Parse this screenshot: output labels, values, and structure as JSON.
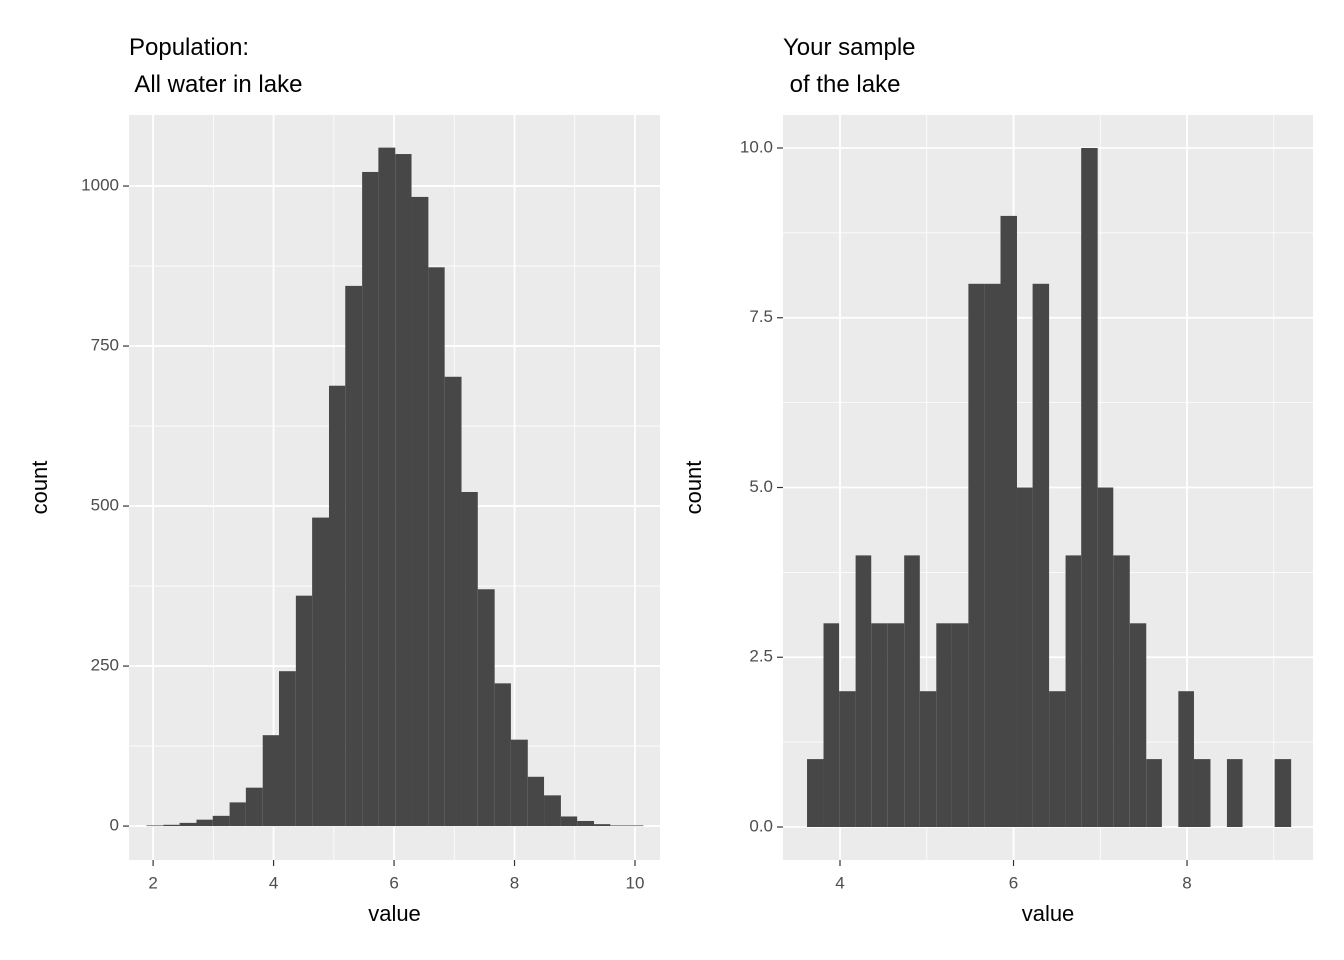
{
  "chart_data": [
    {
      "type": "histogram",
      "title": "Population:\n All water in lake",
      "xlabel": "value",
      "ylabel": "count",
      "bins": [
        1.89,
        2.17,
        2.44,
        2.72,
        2.99,
        3.27,
        3.54,
        3.82,
        4.09,
        4.37,
        4.64,
        4.92,
        5.19,
        5.47,
        5.74,
        6.02,
        6.29,
        6.57,
        6.84,
        7.12,
        7.39,
        7.67,
        7.94,
        8.22,
        8.49,
        8.77,
        9.04,
        9.32,
        9.59,
        9.87,
        10.14
      ],
      "values": [
        1,
        2,
        5,
        10,
        16,
        37,
        60,
        142,
        242,
        360,
        482,
        688,
        844,
        1022,
        1060,
        1050,
        983,
        873,
        702,
        522,
        370,
        223,
        135,
        77,
        48,
        15,
        8,
        3,
        1,
        1
      ],
      "color": "#474747",
      "xlim": [
        1.6,
        10.415
      ],
      "ylim": [
        -53,
        1111
      ],
      "xticks": [
        2,
        4,
        6,
        8,
        10
      ],
      "yticks": [
        0,
        250,
        500,
        750,
        1000
      ],
      "grid": true
    },
    {
      "type": "histogram",
      "title": "Your sample\n of the lake",
      "xlabel": "value",
      "ylabel": "count",
      "bins": [
        3.62,
        3.81,
        3.99,
        4.18,
        4.36,
        4.55,
        4.74,
        4.92,
        5.11,
        5.29,
        5.48,
        5.67,
        5.85,
        6.04,
        6.22,
        6.41,
        6.6,
        6.78,
        6.97,
        7.15,
        7.34,
        7.53,
        7.71,
        7.9,
        8.08,
        8.27,
        8.46,
        8.64,
        8.83,
        9.01,
        9.2
      ],
      "values": [
        1,
        3,
        2,
        4,
        3,
        3,
        4,
        2,
        3,
        3,
        8,
        8,
        9,
        5,
        8,
        2,
        4,
        10,
        5,
        4,
        3,
        1,
        0,
        2,
        1,
        0,
        1,
        0,
        0,
        1
      ],
      "color": "#474747",
      "xlim": [
        3.343,
        9.452
      ],
      "ylim": [
        -0.486,
        10.486
      ],
      "xticks": [
        4,
        6,
        8
      ],
      "yticks": [
        {
          "value": 0,
          "label": "0.0"
        },
        {
          "value": 2.5,
          "label": "2.5"
        },
        {
          "value": 5,
          "label": "5.0"
        },
        {
          "value": 7.5,
          "label": "7.5"
        },
        {
          "value": 10,
          "label": "10.0"
        }
      ],
      "grid": true
    }
  ]
}
